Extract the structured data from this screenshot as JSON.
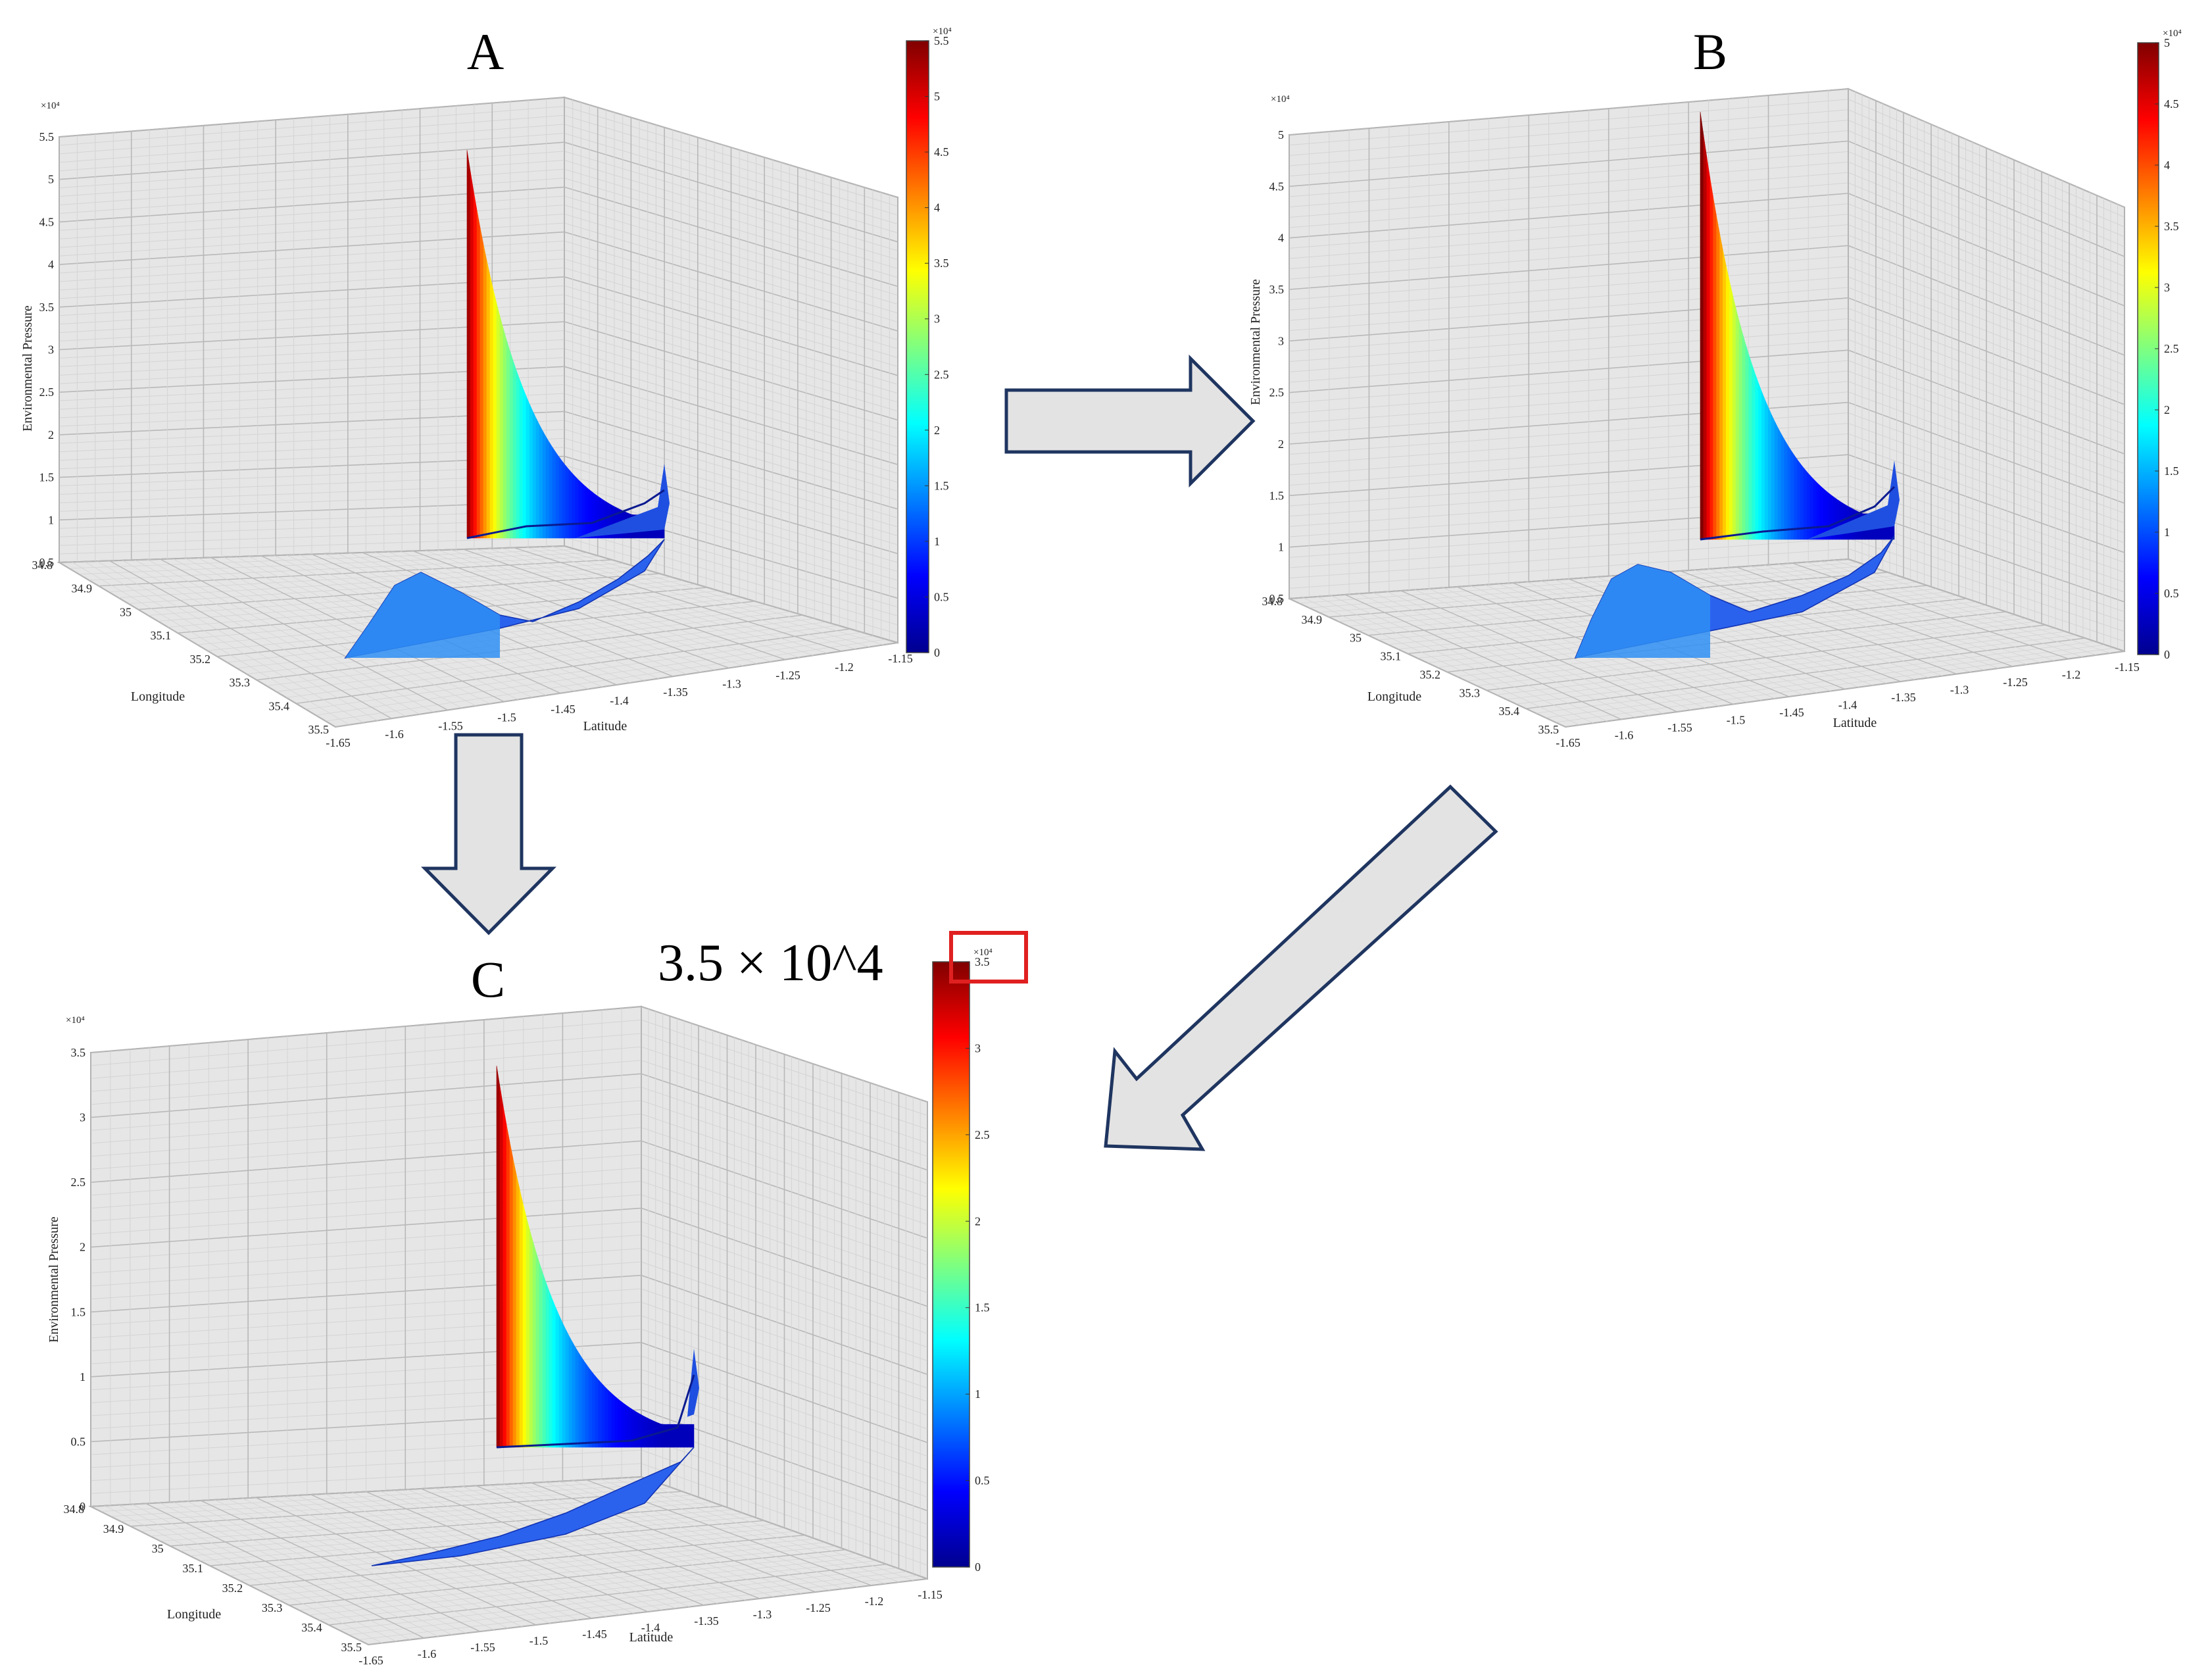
{
  "colors": {
    "pane": "#e6e6e6",
    "grid_major": "#b8b8b8",
    "grid_minor": "#d4d4d4",
    "arrow_fill": "#e3e3e3",
    "arrow_stroke": "#1f3560",
    "highlight_box": "#e02020",
    "colormap": "jet"
  },
  "chart_data": [
    {
      "type": "surface3d",
      "title": "A",
      "zlabel": "Environmental Pressure",
      "xlabel": "Latitude",
      "ylabel": "Longitude",
      "z_multiplier": "×10⁴",
      "zlim": [
        0.5,
        5.5
      ],
      "z_ticks": [
        "0.5",
        "1",
        "1.5",
        "2",
        "2.5",
        "3",
        "3.5",
        "4",
        "4.5",
        "5",
        "5.5"
      ],
      "lat_ticks": [
        "-1.65",
        "-1.6",
        "-1.55",
        "-1.5",
        "-1.45",
        "-1.4",
        "-1.35",
        "-1.3",
        "-1.25",
        "-1.2",
        "-1.15"
      ],
      "lon_ticks": [
        "34.8",
        "34.9",
        "35",
        "35.1",
        "35.2",
        "35.3",
        "35.4",
        "35.5"
      ],
      "colorbar": {
        "multiplier": "×10⁴",
        "ticks": [
          "0",
          "0.5",
          "1",
          "1.5",
          "2",
          "2.5",
          "3",
          "3.5",
          "4",
          "4.5",
          "5",
          "5.5"
        ],
        "max": 5.5
      },
      "peak_value": 5.3
    },
    {
      "type": "surface3d",
      "title": "B",
      "zlabel": "Environmental Pressure",
      "xlabel": "Latitude",
      "ylabel": "Longitude",
      "z_multiplier": "×10⁴",
      "zlim": [
        0.5,
        5
      ],
      "z_ticks": [
        "0.5",
        "1",
        "1.5",
        "2",
        "2.5",
        "3",
        "3.5",
        "4",
        "4.5",
        "5"
      ],
      "lat_ticks": [
        "-1.65",
        "-1.6",
        "-1.55",
        "-1.5",
        "-1.45",
        "-1.4",
        "-1.35",
        "-1.3",
        "-1.25",
        "-1.2",
        "-1.15"
      ],
      "lon_ticks": [
        "34.8",
        "34.9",
        "35",
        "35.1",
        "35.2",
        "35.3",
        "35.4",
        "35.5"
      ],
      "colorbar": {
        "multiplier": "×10⁴",
        "ticks": [
          "0",
          "0.5",
          "1",
          "1.5",
          "2",
          "2.5",
          "3",
          "3.5",
          "4",
          "4.5",
          "5"
        ],
        "max": 5
      },
      "peak_value": 5
    },
    {
      "type": "surface3d",
      "title": "C",
      "zlabel": "Environmental Pressure",
      "xlabel": "Latitude",
      "ylabel": "Longitude",
      "z_multiplier": "×10⁴",
      "zlim": [
        0,
        3.5
      ],
      "z_ticks": [
        "0",
        "0.5",
        "1",
        "1.5",
        "2",
        "2.5",
        "3",
        "3.5"
      ],
      "lat_ticks": [
        "-1.65",
        "-1.6",
        "-1.55",
        "-1.5",
        "-1.45",
        "-1.4",
        "-1.35",
        "-1.3",
        "-1.25",
        "-1.2",
        "-1.15"
      ],
      "lon_ticks": [
        "34.8",
        "34.9",
        "35",
        "35.1",
        "35.2",
        "35.3",
        "35.4",
        "35.5"
      ],
      "colorbar": {
        "multiplier": "×10⁴",
        "ticks": [
          "0",
          "0.5",
          "1",
          "1.5",
          "2",
          "2.5",
          "3",
          "3.5"
        ],
        "max": 3.5
      },
      "peak_value": 3.4
    }
  ],
  "annotation": {
    "text": "3.5 × 10^4"
  }
}
